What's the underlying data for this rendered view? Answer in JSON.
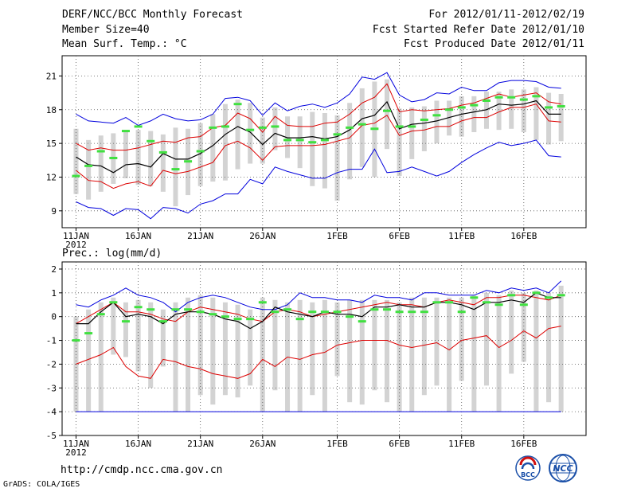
{
  "header": {
    "title": "DERF/NCC/BCC Monthly Forecast",
    "member_size": "Member Size=40",
    "variable": "Mean Surf. Temp.: °C",
    "period": "For 2012/01/11-2012/02/19",
    "started": "Fcst Started Refer Date 2012/01/10",
    "produced": "Fcst Produced Date 2012/01/11"
  },
  "footer": {
    "url": "http://cmdp.ncc.cma.gov.cn",
    "credit": "GrADS: COLA/IGES",
    "logo_bcc": "BCC",
    "logo_ncc": "NCC"
  },
  "colors": {
    "box": "#d3d3d3",
    "median": "#000000",
    "quartile": "#dd0000",
    "extreme": "#0000dd",
    "marker": "#40e040",
    "grid": "#555555"
  },
  "chart_data": [
    {
      "type": "line",
      "name": "temperature",
      "title": "Mean Surf. Temp.: °C",
      "ylim": [
        7.5,
        22.8
      ],
      "yticks": [
        9,
        12,
        15,
        18,
        21
      ],
      "xtick_labels": [
        "11JAN",
        "16JAN",
        "21JAN",
        "26JAN",
        "1FEB",
        "6FEB",
        "11FEB",
        "16FEB"
      ],
      "xtick_days": [
        0,
        5,
        10,
        15,
        21,
        26,
        31,
        36
      ],
      "xyear": "2012",
      "days": 40,
      "series": [
        {
          "name": "max",
          "color": "blue",
          "values": [
            17.6,
            17.0,
            16.9,
            16.8,
            17.3,
            16.6,
            17.0,
            17.6,
            17.2,
            17.0,
            17.1,
            17.6,
            19.0,
            19.1,
            18.8,
            17.5,
            18.6,
            17.9,
            18.3,
            18.5,
            18.2,
            18.6,
            19.4,
            20.9,
            20.7,
            21.3,
            19.3,
            18.7,
            18.9,
            19.5,
            19.4,
            20.0,
            19.7,
            19.7,
            20.4,
            20.6,
            20.6,
            20.5,
            20.0,
            19.9
          ]
        },
        {
          "name": "q75",
          "color": "red",
          "values": [
            15.0,
            14.4,
            14.6,
            14.4,
            14.4,
            14.6,
            14.9,
            15.2,
            15.1,
            15.5,
            15.6,
            16.4,
            16.6,
            17.7,
            17.2,
            16.0,
            17.4,
            16.6,
            16.5,
            16.5,
            16.8,
            16.9,
            17.6,
            18.6,
            19.1,
            20.3,
            17.8,
            18.0,
            17.9,
            18.0,
            18.1,
            18.4,
            18.6,
            19.0,
            19.4,
            19.1,
            19.3,
            19.5,
            18.7,
            18.5
          ]
        },
        {
          "name": "median",
          "color": "black",
          "values": [
            13.8,
            13.1,
            13.0,
            12.4,
            13.1,
            13.2,
            12.9,
            14.1,
            13.6,
            13.6,
            14.1,
            14.8,
            15.8,
            16.5,
            16.0,
            14.9,
            15.9,
            15.5,
            15.5,
            15.6,
            15.4,
            15.6,
            16.2,
            17.2,
            17.5,
            18.7,
            16.3,
            16.7,
            16.8,
            17.0,
            17.3,
            17.6,
            17.8,
            18.0,
            18.5,
            18.4,
            18.5,
            18.8,
            17.6,
            17.6
          ]
        },
        {
          "name": "q25",
          "color": "red",
          "values": [
            12.6,
            11.7,
            11.6,
            11.0,
            11.4,
            11.6,
            11.2,
            12.6,
            12.3,
            12.5,
            12.9,
            13.3,
            14.8,
            15.2,
            14.6,
            13.5,
            14.7,
            14.8,
            14.8,
            14.8,
            14.9,
            15.2,
            15.5,
            16.6,
            16.8,
            17.5,
            15.7,
            16.1,
            16.2,
            16.5,
            16.5,
            17.0,
            17.3,
            17.3,
            17.8,
            18.2,
            18.2,
            18.5,
            17.0,
            16.9
          ]
        },
        {
          "name": "min",
          "color": "blue",
          "values": [
            9.8,
            9.3,
            9.2,
            8.6,
            9.2,
            9.1,
            8.3,
            9.3,
            9.2,
            8.8,
            9.6,
            9.9,
            10.5,
            10.5,
            11.8,
            11.4,
            12.9,
            12.5,
            12.2,
            11.9,
            11.9,
            12.4,
            12.7,
            12.7,
            14.5,
            12.4,
            12.5,
            12.9,
            12.5,
            12.1,
            12.5,
            13.3,
            14.0,
            14.6,
            15.1,
            14.8,
            15.0,
            15.3,
            13.9,
            13.8
          ]
        },
        {
          "name": "marker",
          "color": "green",
          "values": [
            12.1,
            13.0,
            14.3,
            13.7,
            16.1,
            16.5,
            15.2,
            14.2,
            12.7,
            13.4,
            14.3,
            16.4,
            16.5,
            18.5,
            16.2,
            16.4,
            16.5,
            15.3,
            15.3,
            15.1,
            15.3,
            15.8,
            16.4,
            16.7,
            16.3,
            17.9,
            16.5,
            16.5,
            17.1,
            17.5,
            18.0,
            18.2,
            18.4,
            18.8,
            19.1,
            19.1,
            18.9,
            19.2,
            18.2,
            18.3
          ]
        },
        {
          "name": "box_high",
          "color": "gray",
          "values": [
            16.3,
            15.3,
            15.7,
            15.9,
            16.0,
            16.2,
            16.1,
            15.8,
            16.4,
            16.3,
            16.8,
            17.6,
            18.5,
            18.9,
            18.6,
            17.3,
            18.2,
            17.4,
            17.4,
            17.8,
            17.7,
            17.5,
            18.6,
            19.9,
            20.5,
            20.7,
            18.1,
            18.2,
            18.3,
            18.8,
            18.8,
            19.2,
            19.2,
            19.6,
            19.6,
            19.8,
            19.8,
            20.0,
            19.5,
            19.4
          ]
        },
        {
          "name": "box_low",
          "color": "gray",
          "values": [
            10.5,
            10.0,
            10.7,
            11.4,
            11.9,
            11.3,
            11.2,
            10.7,
            9.4,
            10.4,
            11.2,
            11.6,
            11.7,
            12.7,
            13.2,
            13.2,
            14.4,
            13.7,
            12.8,
            11.2,
            11.0,
            9.9,
            11.8,
            12.9,
            12.0,
            14.5,
            12.1,
            13.6,
            14.3,
            15.0,
            15.7,
            15.6,
            16.0,
            16.3,
            16.2,
            16.3,
            16.0,
            15.3,
            14.9,
            15.2
          ]
        }
      ]
    },
    {
      "type": "line",
      "name": "precipitation",
      "title": "Prec.: log(mm/d)",
      "ylim": [
        -5,
        2.3
      ],
      "yticks": [
        -5,
        -4,
        -3,
        -2,
        -1,
        0,
        1,
        2
      ],
      "xtick_labels": [
        "11JAN",
        "16JAN",
        "21JAN",
        "26JAN",
        "1FEB",
        "6FEB",
        "11FEB",
        "16FEB"
      ],
      "xtick_days": [
        0,
        5,
        10,
        15,
        21,
        26,
        31,
        36
      ],
      "xyear": "2012",
      "days": 40,
      "series": [
        {
          "name": "max",
          "color": "blue",
          "values": [
            0.5,
            0.4,
            0.7,
            0.9,
            1.2,
            0.9,
            0.8,
            0.6,
            0.2,
            0.6,
            0.8,
            0.9,
            0.8,
            0.6,
            0.4,
            0.3,
            0.3,
            0.5,
            1.0,
            0.8,
            0.8,
            0.7,
            0.7,
            0.6,
            0.9,
            0.8,
            0.8,
            0.7,
            1.0,
            1.0,
            0.9,
            0.9,
            0.9,
            1.1,
            1.0,
            1.2,
            1.1,
            1.2,
            1.0,
            1.5
          ]
        },
        {
          "name": "q75",
          "color": "red",
          "values": [
            -0.3,
            0.0,
            0.3,
            0.6,
            0.2,
            0.2,
            0.1,
            -0.1,
            -0.2,
            0.2,
            0.4,
            0.3,
            0.2,
            0.1,
            -0.1,
            -0.2,
            0.2,
            0.3,
            0.2,
            0.0,
            0.1,
            0.2,
            0.3,
            0.4,
            0.5,
            0.6,
            0.5,
            0.5,
            0.4,
            0.6,
            0.7,
            0.6,
            0.5,
            0.8,
            0.8,
            0.9,
            0.9,
            0.8,
            0.7,
            0.9
          ]
        },
        {
          "name": "median",
          "color": "black",
          "values": [
            -0.3,
            -0.3,
            0.2,
            0.6,
            0.0,
            0.1,
            0.0,
            -0.3,
            0.1,
            0.2,
            0.2,
            0.1,
            -0.1,
            -0.2,
            -0.5,
            -0.2,
            0.4,
            0.2,
            0.1,
            0.0,
            0.2,
            0.1,
            0.1,
            0.0,
            0.4,
            0.4,
            0.5,
            0.4,
            0.4,
            0.6,
            0.6,
            0.5,
            0.3,
            0.6,
            0.6,
            0.7,
            0.6,
            1.0,
            0.8,
            0.8
          ]
        },
        {
          "name": "q25",
          "color": "red",
          "values": [
            -2.0,
            -1.8,
            -1.6,
            -1.3,
            -2.1,
            -2.5,
            -2.6,
            -1.8,
            -1.9,
            -2.1,
            -2.2,
            -2.4,
            -2.5,
            -2.6,
            -2.4,
            -1.8,
            -2.1,
            -1.7,
            -1.8,
            -1.6,
            -1.5,
            -1.2,
            -1.1,
            -1.0,
            -1.0,
            -1.0,
            -1.2,
            -1.3,
            -1.2,
            -1.1,
            -1.4,
            -1.0,
            -0.9,
            -0.8,
            -1.3,
            -1.0,
            -0.6,
            -0.9,
            -0.5,
            -0.4
          ]
        },
        {
          "name": "min",
          "color": "blue",
          "values": [
            -4.0,
            -4.0,
            -4.0,
            -4.0,
            -4.0,
            -4.0,
            -4.0,
            -4.0,
            -4.0,
            -4.0,
            -4.0,
            -4.0,
            -4.0,
            -4.0,
            -4.0,
            -4.0,
            -4.0,
            -4.0,
            -4.0,
            -4.0,
            -4.0,
            -4.0,
            -4.0,
            -4.0,
            -4.0,
            -4.0,
            -4.0,
            -4.0,
            -4.0,
            -4.0,
            -4.0,
            -4.0,
            -4.0,
            -4.0,
            -4.0,
            -4.0,
            -4.0,
            -4.0,
            -4.0,
            -4.0
          ]
        },
        {
          "name": "marker",
          "color": "green",
          "values": [
            -1.0,
            -0.7,
            0.1,
            0.6,
            -0.2,
            0.4,
            0.3,
            -0.2,
            0.3,
            0.3,
            0.2,
            0.1,
            0.0,
            -0.1,
            -0.1,
            0.6,
            0.2,
            0.3,
            -0.1,
            0.2,
            0.2,
            0.2,
            0.0,
            -0.2,
            0.3,
            0.3,
            0.2,
            0.2,
            0.2,
            0.6,
            0.6,
            0.2,
            0.8,
            0.6,
            0.5,
            0.9,
            0.5,
            1.0,
            0.8,
            0.9
          ]
        },
        {
          "name": "box_high",
          "color": "gray",
          "values": [
            0.0,
            0.3,
            0.6,
            0.8,
            0.6,
            0.7,
            0.6,
            0.3,
            0.6,
            0.8,
            0.9,
            0.8,
            0.6,
            0.5,
            0.3,
            0.8,
            0.7,
            0.6,
            0.7,
            0.6,
            0.7,
            0.6,
            0.7,
            0.7,
            0.7,
            0.7,
            0.6,
            0.8,
            0.8,
            0.8,
            0.8,
            0.8,
            0.9,
            1.0,
            0.9,
            1.1,
            1.0,
            1.1,
            1.0,
            1.3
          ]
        },
        {
          "name": "box_low",
          "color": "gray",
          "values": [
            -4.0,
            -4.0,
            -4.0,
            -1.6,
            -1.7,
            -2.3,
            -3.0,
            -2.1,
            -4.0,
            -4.0,
            -3.3,
            -3.7,
            -3.3,
            -3.4,
            -2.9,
            -4.0,
            -3.1,
            -4.0,
            -4.0,
            -3.3,
            -4.0,
            -2.5,
            -3.6,
            -3.7,
            -3.1,
            -3.6,
            -4.0,
            -4.0,
            -3.3,
            -2.9,
            -4.0,
            -2.7,
            -4.0,
            -2.9,
            -4.0,
            -2.4,
            -1.9,
            -4.0,
            -3.6,
            -4.0
          ]
        }
      ]
    }
  ]
}
